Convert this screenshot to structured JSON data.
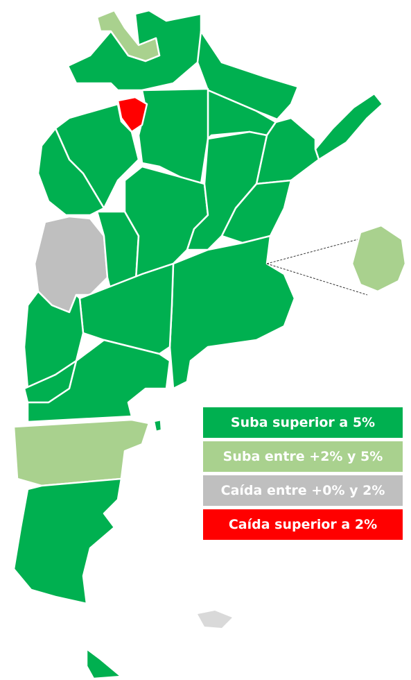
{
  "legend": [
    {
      "label": "Suba superior a 5%",
      "color": "#00b050"
    },
    {
      "label": "Suba entre +2% y 5%",
      "color": "#a9d18e"
    },
    {
      "label": "Caída entre +0% y 2%",
      "color": "#bfbfbf"
    },
    {
      "label": "Caída superior a 2%",
      "color": "#ff0000"
    }
  ]
}
